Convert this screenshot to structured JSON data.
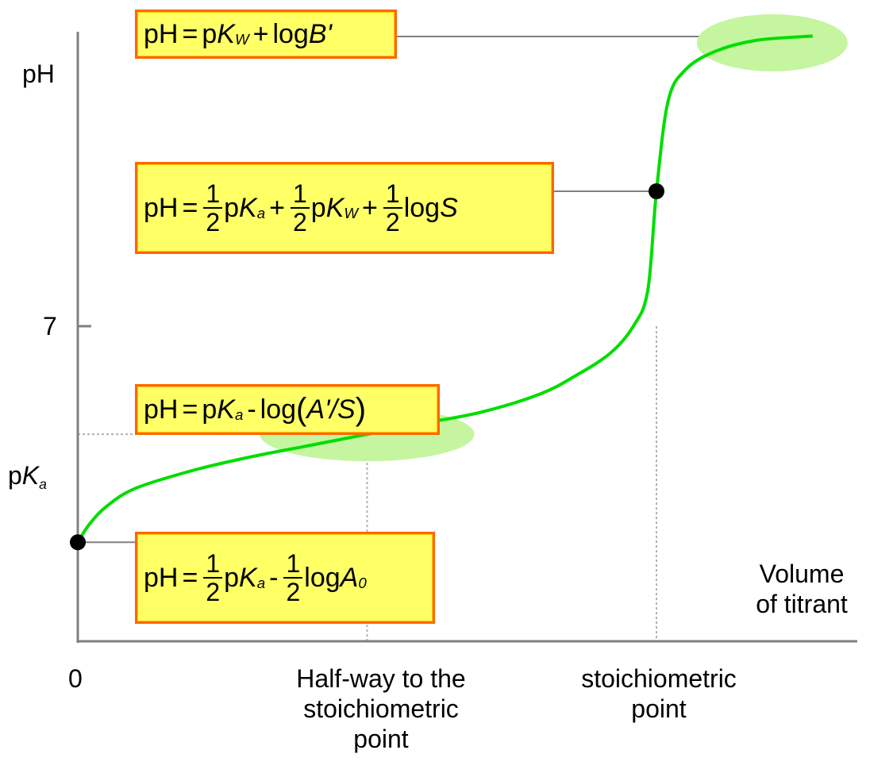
{
  "chart_data": {
    "type": "line",
    "title": "",
    "xlabel": "Volume of titrant",
    "ylabel": "pH",
    "y_ticks": [
      {
        "label": "7",
        "value": 7
      },
      {
        "label": "pK_a",
        "value": 4.6
      }
    ],
    "x_ticks": [
      {
        "label": "0",
        "value": 0
      },
      {
        "label": "Half-way to the stoichiometric point",
        "value": 0.5
      },
      {
        "label": "stoichiometric point",
        "value": 1.0
      }
    ],
    "xlim": [
      0,
      1.3
    ],
    "ylim": [
      0,
      13.5
    ],
    "series": [
      {
        "color": "#00dd00",
        "x": [
          0,
          0.02,
          0.05,
          0.1,
          0.2,
          0.3,
          0.4,
          0.5,
          0.6,
          0.7,
          0.8,
          0.86,
          0.92,
          0.96,
          0.985,
          1.0,
          1.02,
          1.05,
          1.1,
          1.17,
          1.27
        ],
        "y": [
          2.2,
          2.6,
          3.0,
          3.4,
          3.8,
          4.1,
          4.35,
          4.6,
          4.85,
          5.1,
          5.5,
          5.9,
          6.4,
          7.0,
          7.8,
          10.0,
          12.0,
          12.7,
          13.1,
          13.35,
          13.45
        ]
      }
    ],
    "points": [
      {
        "x": 0,
        "y": 2.2
      },
      {
        "x": 1.0,
        "y": 10.0
      }
    ],
    "highlights": [
      {
        "x": 0.5,
        "y": 4.6
      },
      {
        "x": 1.2,
        "y": 13.3
      }
    ],
    "annotations": [
      {
        "text": "pH = pK_W + logB'",
        "x": 1.2,
        "y": 13.3
      },
      {
        "text": "pH = 1/2 pK_a + 1/2 pK_W + 1/2 logS",
        "x": 1.0,
        "y": 10.0
      },
      {
        "text": "pH = pK_a - log(A'/S)",
        "x": 0.5,
        "y": 4.6
      },
      {
        "text": "pH = 1/2 pK_a - 1/2 logA_0",
        "x": 0,
        "y": 2.2
      }
    ]
  },
  "labels": {
    "ylabel": "pH",
    "tick_7": "7",
    "pka_p": "p",
    "pka_K": "K",
    "pka_a": "a",
    "x_zero": "0",
    "xlabel_line1": "Volume",
    "xlabel_line2": "of titrant",
    "half_line1": "Half-way to the",
    "half_line2": "stoichiometric",
    "half_line3": "point",
    "stoich_line1": "stoichiometric",
    "stoich_line2": "point"
  },
  "eq_top": {
    "pH": "pH",
    "eq": "=",
    "p": "p",
    "K": "K",
    "W": "W",
    "plus": "+",
    "log": "log",
    "B": "B'"
  },
  "eq_mid": {
    "pH": "pH",
    "eq": "=",
    "one": "1",
    "two": "2",
    "p": "p",
    "K": "K",
    "a": "a",
    "W": "W",
    "plus": "+",
    "log": "log",
    "S": "S"
  },
  "eq_half": {
    "pH": "pH",
    "eq": "=",
    "p": "p",
    "K": "K",
    "a": "a",
    "minus": "-",
    "log": "log",
    "lp": "(",
    "A": "A'",
    "slash": "/",
    "S": "S",
    "rp": ")"
  },
  "eq_start": {
    "pH": "pH",
    "eq": "=",
    "one": "1",
    "two": "2",
    "p": "p",
    "K": "K",
    "a": "a",
    "minus": "-",
    "log": "log",
    "A": "A",
    "zero": "0"
  }
}
